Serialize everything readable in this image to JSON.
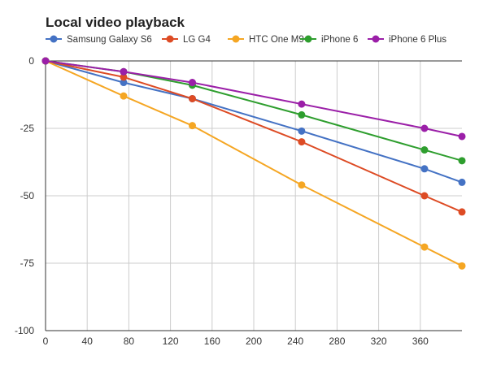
{
  "chart_data": {
    "type": "line",
    "title": "Local video playback",
    "xlabel": "",
    "ylabel": "",
    "xlim": [
      0,
      400
    ],
    "ylim": [
      -100,
      0
    ],
    "x_ticks": [
      0,
      40,
      80,
      120,
      160,
      200,
      240,
      280,
      320,
      360
    ],
    "y_ticks": [
      0,
      -25,
      -50,
      -75,
      -100
    ],
    "grid": true,
    "legend_position": "top",
    "series": [
      {
        "name": "Samsung Galaxy S6",
        "color": "#4472c4",
        "points": [
          [
            0,
            0
          ],
          [
            75,
            -8
          ],
          [
            141,
            -14
          ],
          [
            246,
            -26
          ],
          [
            364,
            -40
          ],
          [
            400,
            -45
          ]
        ]
      },
      {
        "name": "LG G4",
        "color": "#dd4b24",
        "points": [
          [
            0,
            0
          ],
          [
            75,
            -6
          ],
          [
            141,
            -14
          ],
          [
            246,
            -30
          ],
          [
            364,
            -50
          ],
          [
            400,
            -56
          ]
        ]
      },
      {
        "name": "HTC One M9",
        "color": "#f5a623",
        "points": [
          [
            0,
            0
          ],
          [
            75,
            -13
          ],
          [
            141,
            -24
          ],
          [
            246,
            -46
          ],
          [
            364,
            -69
          ],
          [
            400,
            -76
          ]
        ]
      },
      {
        "name": "iPhone 6",
        "color": "#2e9e2e",
        "points": [
          [
            0,
            0
          ],
          [
            75,
            -4
          ],
          [
            141,
            -9
          ],
          [
            246,
            -20
          ],
          [
            364,
            -33
          ],
          [
            400,
            -37
          ]
        ]
      },
      {
        "name": "iPhone 6 Plus",
        "color": "#9b1fa8",
        "points": [
          [
            0,
            0
          ],
          [
            75,
            -4
          ],
          [
            141,
            -8
          ],
          [
            246,
            -16
          ],
          [
            364,
            -25
          ],
          [
            400,
            -28
          ]
        ]
      }
    ]
  }
}
